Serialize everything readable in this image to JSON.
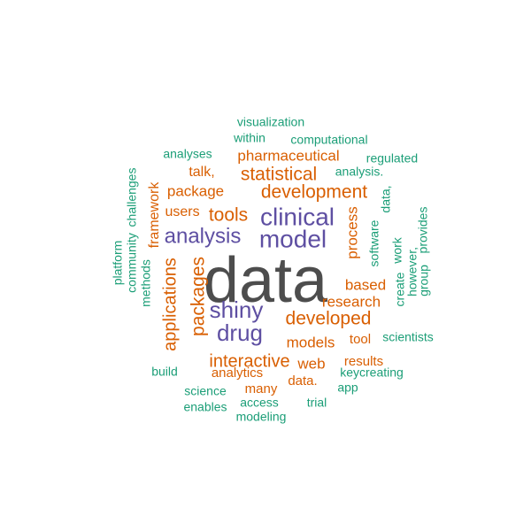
{
  "colors": {
    "large": "#4d4d4d",
    "primary": "#5e4fa2",
    "secondary": "#d95f02",
    "tertiary": "#1b9e77"
  },
  "words": [
    {
      "text": "data",
      "level": "large"
    },
    {
      "text": "clinical",
      "level": "primary"
    },
    {
      "text": "model",
      "level": "primary"
    },
    {
      "text": "analysis",
      "level": "primary"
    },
    {
      "text": "shiny",
      "level": "primary"
    },
    {
      "text": "drug",
      "level": "primary"
    },
    {
      "text": "development",
      "level": "secondary"
    },
    {
      "text": "statistical",
      "level": "secondary"
    },
    {
      "text": "tools",
      "level": "secondary"
    },
    {
      "text": "packages",
      "level": "secondary"
    },
    {
      "text": "applications",
      "level": "secondary"
    },
    {
      "text": "developed",
      "level": "secondary"
    },
    {
      "text": "interactive",
      "level": "secondary"
    },
    {
      "text": "research",
      "level": "secondary"
    },
    {
      "text": "models",
      "level": "secondary"
    },
    {
      "text": "pharmaceutical",
      "level": "secondary"
    },
    {
      "text": "package",
      "level": "secondary"
    },
    {
      "text": "based",
      "level": "secondary"
    },
    {
      "text": "process",
      "level": "secondary"
    },
    {
      "text": "web",
      "level": "secondary"
    },
    {
      "text": "talk,",
      "level": "secondary"
    },
    {
      "text": "users",
      "level": "secondary"
    },
    {
      "text": "framework",
      "level": "secondary"
    },
    {
      "text": "tool",
      "level": "secondary"
    },
    {
      "text": "results",
      "level": "secondary"
    },
    {
      "text": "data.",
      "level": "secondary"
    },
    {
      "text": "analytics",
      "level": "secondary"
    },
    {
      "text": "many",
      "level": "secondary"
    },
    {
      "text": "visualization",
      "level": "tertiary"
    },
    {
      "text": "within",
      "level": "tertiary"
    },
    {
      "text": "computational",
      "level": "tertiary"
    },
    {
      "text": "analyses",
      "level": "tertiary"
    },
    {
      "text": "regulated",
      "level": "tertiary"
    },
    {
      "text": "analysis.",
      "level": "tertiary"
    },
    {
      "text": "challenges",
      "level": "tertiary"
    },
    {
      "text": "community",
      "level": "tertiary"
    },
    {
      "text": "platform",
      "level": "tertiary"
    },
    {
      "text": "methods",
      "level": "tertiary"
    },
    {
      "text": "data,",
      "level": "tertiary"
    },
    {
      "text": "software",
      "level": "tertiary"
    },
    {
      "text": "create",
      "level": "tertiary"
    },
    {
      "text": "however,",
      "level": "tertiary"
    },
    {
      "text": "work",
      "level": "tertiary"
    },
    {
      "text": "group",
      "level": "tertiary"
    },
    {
      "text": "provides",
      "level": "tertiary"
    },
    {
      "text": "scientists",
      "level": "tertiary"
    },
    {
      "text": "build",
      "level": "tertiary"
    },
    {
      "text": "keycreating",
      "level": "tertiary"
    },
    {
      "text": "app",
      "level": "tertiary"
    },
    {
      "text": "science",
      "level": "tertiary"
    },
    {
      "text": "access",
      "level": "tertiary"
    },
    {
      "text": "trial",
      "level": "tertiary"
    },
    {
      "text": "enables",
      "level": "tertiary"
    },
    {
      "text": "modeling",
      "level": "tertiary"
    }
  ]
}
